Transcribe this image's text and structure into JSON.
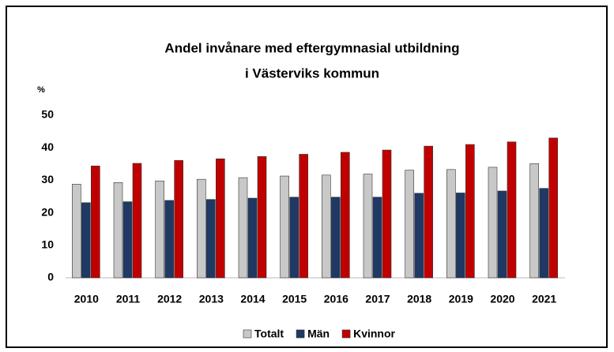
{
  "chart_data": {
    "type": "bar",
    "title": "Andel invånare med eftergymnasial utbildning",
    "subtitle": "i Västerviks kommun",
    "ylabel": "%",
    "categories": [
      "2010",
      "2011",
      "2012",
      "2013",
      "2014",
      "2015",
      "2016",
      "2017",
      "2018",
      "2019",
      "2020",
      "2021"
    ],
    "series": [
      {
        "name": "Totalt",
        "color": "#c8c8c8",
        "values": [
          28.8,
          29.3,
          29.8,
          30.3,
          30.8,
          31.3,
          31.6,
          31.9,
          33.1,
          33.3,
          34.0,
          35.1
        ]
      },
      {
        "name": "Män",
        "color": "#1f3864",
        "values": [
          23.1,
          23.4,
          23.8,
          24.1,
          24.5,
          24.8,
          24.8,
          24.8,
          26.0,
          26.1,
          26.7,
          27.5
        ]
      },
      {
        "name": "Kvinnor",
        "color": "#c00000",
        "values": [
          34.4,
          35.2,
          36.1,
          36.6,
          37.3,
          38.0,
          38.6,
          39.3,
          40.5,
          41.0,
          41.8,
          43.0
        ]
      }
    ],
    "ylim": [
      0,
      50
    ],
    "yticks": [
      0,
      10,
      20,
      30,
      40,
      50
    ],
    "grid": false,
    "legend": "bottom"
  }
}
